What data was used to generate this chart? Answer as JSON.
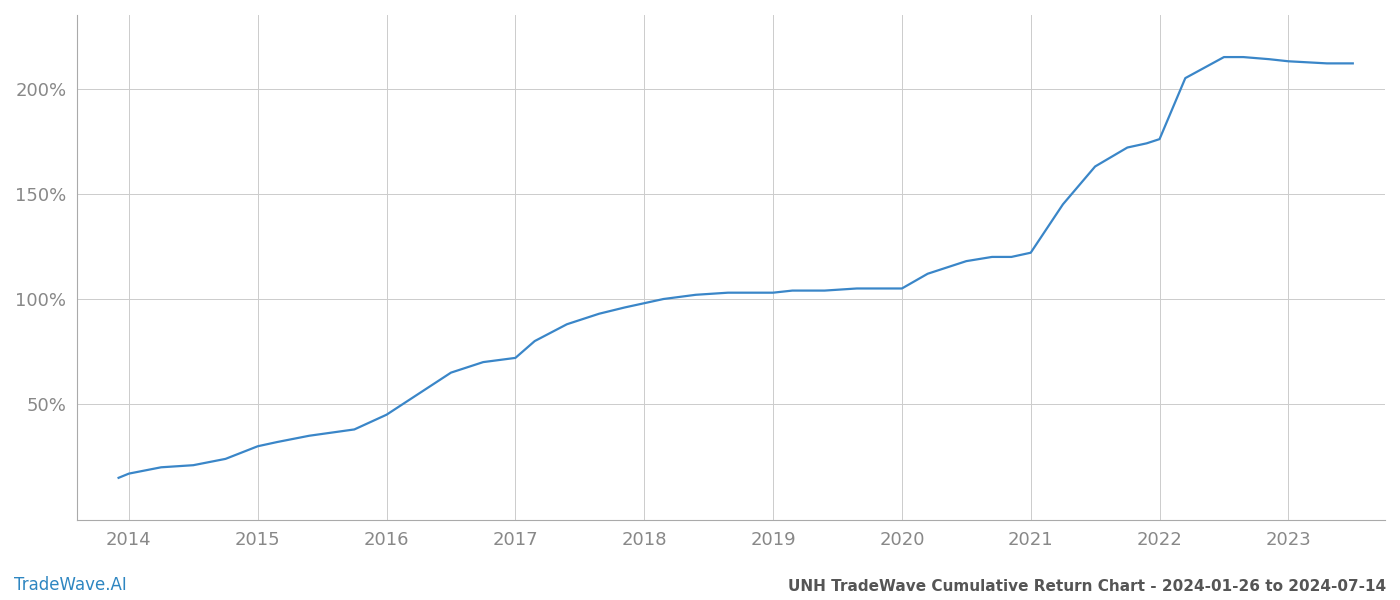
{
  "title": "UNH TradeWave Cumulative Return Chart - 2024-01-26 to 2024-07-14",
  "watermark": "TradeWave.AI",
  "line_color": "#3a86c8",
  "background_color": "#ffffff",
  "grid_color": "#cccccc",
  "x_years": [
    2014,
    2015,
    2016,
    2017,
    2018,
    2019,
    2020,
    2021,
    2022,
    2023
  ],
  "data_x": [
    2013.92,
    2014.0,
    2014.25,
    2014.5,
    2014.75,
    2015.0,
    2015.15,
    2015.4,
    2015.75,
    2016.0,
    2016.25,
    2016.5,
    2016.75,
    2017.0,
    2017.15,
    2017.4,
    2017.65,
    2017.85,
    2018.0,
    2018.15,
    2018.4,
    2018.65,
    2018.85,
    2019.0,
    2019.15,
    2019.4,
    2019.65,
    2019.85,
    2020.0,
    2020.2,
    2020.5,
    2020.7,
    2020.85,
    2021.0,
    2021.25,
    2021.5,
    2021.75,
    2021.9,
    2022.0,
    2022.2,
    2022.5,
    2022.65,
    2022.85,
    2023.0,
    2023.3,
    2023.5
  ],
  "data_y": [
    15,
    17,
    20,
    21,
    24,
    30,
    32,
    35,
    38,
    45,
    55,
    65,
    70,
    72,
    80,
    88,
    93,
    96,
    98,
    100,
    102,
    103,
    103,
    103,
    104,
    104,
    105,
    105,
    105,
    112,
    118,
    120,
    120,
    122,
    145,
    163,
    172,
    174,
    176,
    205,
    215,
    215,
    214,
    213,
    212,
    212
  ],
  "ylim": [
    -5,
    235
  ],
  "yticks": [
    50,
    100,
    150,
    200
  ],
  "ytick_labels": [
    "50%",
    "100%",
    "150%",
    "200%"
  ],
  "xlim": [
    2013.6,
    2023.75
  ],
  "title_fontsize": 11,
  "tick_fontsize": 13,
  "watermark_fontsize": 12,
  "line_width": 1.6
}
